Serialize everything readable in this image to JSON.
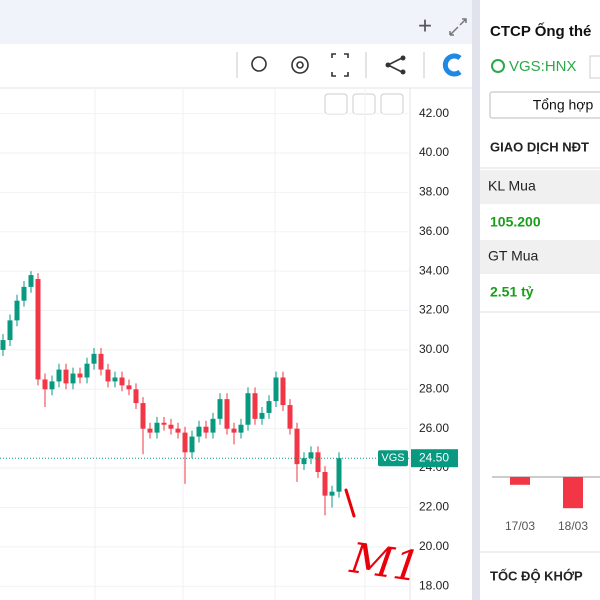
{
  "chart_data": {
    "type": "candlestick",
    "symbol_tag": "VGS",
    "last_price": {
      "value": 24.5,
      "label": "24.50"
    },
    "annotation": "M1",
    "open": [
      30.0,
      30.5,
      31.5,
      32.5,
      33.2,
      33.6,
      28.5,
      28.0,
      28.4,
      29.0,
      28.3,
      28.8,
      28.6,
      29.3,
      29.8,
      29.0,
      28.4,
      28.6,
      28.2,
      28.0,
      27.3,
      26.0,
      25.8,
      26.3,
      26.2,
      26.0,
      25.8,
      24.8,
      25.6,
      26.1,
      25.8,
      26.5,
      27.5,
      26.0,
      25.8,
      26.2,
      27.8,
      26.5,
      26.8,
      27.4,
      28.6,
      27.2,
      26.0,
      24.2,
      24.5,
      24.8,
      23.8,
      22.6,
      22.8
    ],
    "high": [
      30.8,
      31.8,
      32.8,
      33.5,
      34.0,
      33.9,
      28.8,
      28.7,
      29.3,
      29.3,
      29.1,
      29.1,
      29.6,
      30.1,
      30.1,
      29.3,
      28.9,
      28.9,
      28.5,
      28.3,
      27.6,
      26.3,
      26.6,
      26.6,
      26.5,
      26.3,
      26.1,
      25.9,
      26.4,
      26.4,
      26.8,
      27.8,
      27.8,
      26.3,
      26.5,
      28.1,
      28.1,
      27.1,
      27.7,
      28.9,
      28.9,
      27.5,
      26.3,
      24.8,
      25.1,
      25.1,
      24.1,
      23.1,
      24.8
    ],
    "low": [
      29.7,
      30.2,
      31.2,
      32.2,
      32.9,
      28.2,
      27.1,
      27.7,
      28.1,
      28.0,
      28.0,
      28.3,
      28.3,
      29.0,
      28.7,
      28.1,
      28.1,
      27.9,
      27.7,
      27.0,
      24.7,
      25.5,
      25.5,
      25.9,
      25.7,
      25.5,
      23.2,
      24.5,
      25.3,
      25.5,
      25.5,
      26.2,
      25.7,
      25.2,
      25.5,
      25.9,
      26.2,
      26.2,
      26.5,
      27.1,
      26.9,
      25.7,
      23.3,
      23.9,
      24.2,
      23.5,
      21.6,
      22.0,
      22.5
    ],
    "close": [
      30.5,
      31.5,
      32.5,
      33.2,
      33.8,
      28.5,
      28.0,
      28.4,
      29.0,
      28.3,
      28.8,
      28.6,
      29.3,
      29.8,
      29.0,
      28.4,
      28.6,
      28.2,
      28.0,
      27.3,
      26.0,
      25.8,
      26.3,
      26.2,
      26.0,
      25.8,
      24.8,
      25.6,
      26.1,
      25.8,
      26.5,
      27.5,
      26.0,
      25.8,
      26.2,
      27.8,
      26.5,
      26.8,
      27.4,
      28.6,
      27.2,
      26.0,
      24.2,
      24.5,
      24.8,
      23.8,
      22.6,
      22.8,
      24.5
    ],
    "up_color": "#089981",
    "down_color": "#f23645",
    "ylim": [
      17.3,
      43.3
    ],
    "yticks": [
      {
        "value": 42,
        "label": "42.00"
      },
      {
        "value": 40,
        "label": "40.00"
      },
      {
        "value": 38,
        "label": "38.00"
      },
      {
        "value": 36,
        "label": "36.00"
      },
      {
        "value": 34,
        "label": "34.00"
      },
      {
        "value": 32,
        "label": "32.00"
      },
      {
        "value": 30,
        "label": "30.00"
      },
      {
        "value": 28,
        "label": "28.00"
      },
      {
        "value": 26,
        "label": "26.00"
      },
      {
        "value": 24,
        "label": "24.00"
      },
      {
        "value": 22,
        "label": "22.00"
      },
      {
        "value": 20,
        "label": "20.00"
      },
      {
        "value": 18,
        "label": "18.00"
      }
    ],
    "grid": true
  },
  "panel": {
    "company": "CTCP Ống thé",
    "ticker": "VGS:HNX",
    "tab": "Tổng hợp",
    "section": "GIAO DỊCH NĐT",
    "rows": [
      {
        "label": "KL Mua",
        "value": "105.200"
      },
      {
        "label": "GT Mua",
        "value": "2.51 tỷ"
      }
    ],
    "flow": {
      "categories": [
        "17/03",
        "18/03"
      ],
      "values": [
        -0.3,
        -1.2
      ],
      "color": "#f23645"
    },
    "footer": "TỐC ĐỘ KHỚP"
  }
}
